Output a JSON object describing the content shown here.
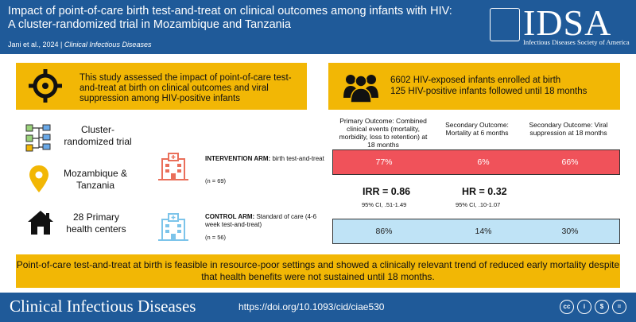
{
  "header": {
    "title": "Impact of point-of-care birth test-and-treat on clinical outcomes among infants with HIV: A cluster-randomized trial in Mozambique and Tanzania",
    "citation_authors": "Jani et al., 2024 |",
    "citation_journal": "Clinical Infectious Diseases"
  },
  "logo": {
    "wordmark": "IDSA",
    "subtitle": "Infectious Diseases Society of America"
  },
  "summary": {
    "aim": "This study assessed the impact of point-of-care test-and-treat at birth on clinical outcomes and viral suppression among HIV-positive infants",
    "enrolled": "6602 HIV-exposed infants enrolled at birth",
    "followed": "125 HIV-positive infants followed until 18 months"
  },
  "design": {
    "type": "Cluster-randomized trial",
    "location": "Mozambique & Tanzania",
    "sites": "28 Primary health centers"
  },
  "arms": {
    "intervention_title": "INTERVENTION ARM:",
    "intervention_desc": "birth test-and-treat",
    "intervention_n": "(n = 69)",
    "control_title": "CONTROL ARM:",
    "control_desc": "Standard of care (4-6 week test-and-treat)",
    "control_n": "(n = 56)"
  },
  "outcomes": {
    "primary": "Primary Outcome: Combined clinical events (mortality, morbidity, loss to retention) at 18 months",
    "secondary_mortality": "Secondary Outcome: Mortality at 6 months",
    "secondary_viral": "Secondary Outcome: Viral suppression at 18 months",
    "intervention_values": [
      "77%",
      "6%",
      "66%"
    ],
    "control_values": [
      "86%",
      "14%",
      "30%"
    ],
    "irr": "IRR = 0.86",
    "irr_ci": "95% CI, .51-1.49",
    "hr": "HR = 0.32",
    "hr_ci": "95% CI, .10-1.07"
  },
  "conclusion": "Point-of-care test-and-treat at birth is feasible in resource-poor settings and showed a clinically relevant trend of reduced early mortality despite that health benefits were not sustained until 18 months.",
  "footer": {
    "journal": "Clinical Infectious Diseases",
    "doi": "https://doi.org/10.1093/cid/ciae530",
    "license_icons": [
      "cc",
      "i",
      "$",
      "="
    ]
  },
  "colors": {
    "brand_blue": "#1f5a99",
    "highlight_yellow": "#f2b705",
    "intervention_red": "#f0525a",
    "control_blue": "#bfe3f6"
  }
}
